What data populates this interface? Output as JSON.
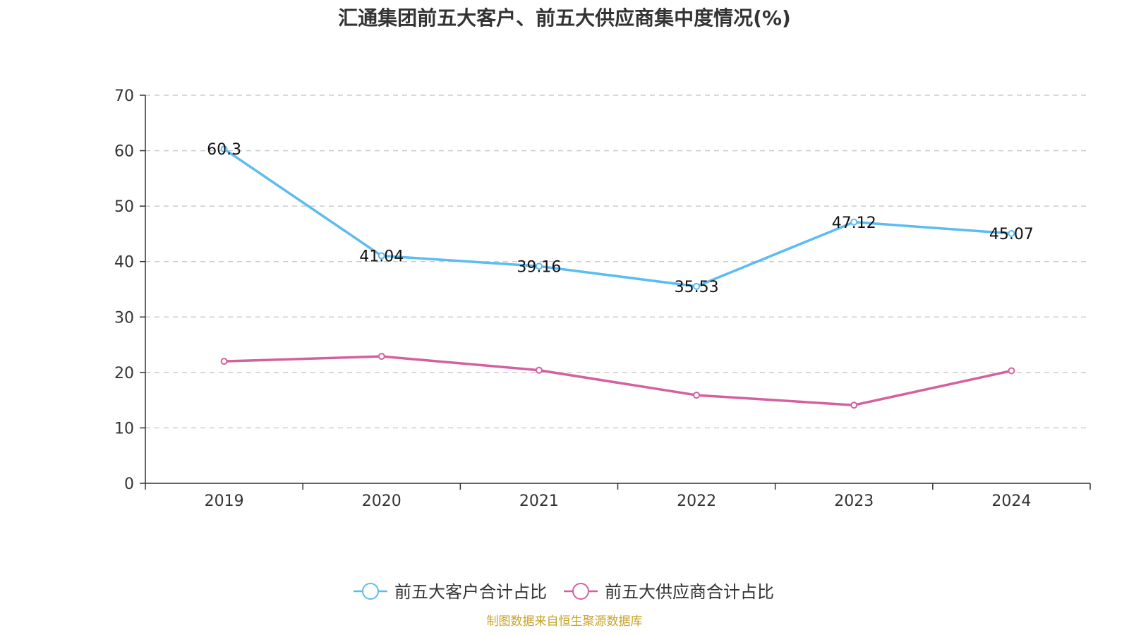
{
  "chart_data": {
    "type": "line",
    "title": "汇通集团前五大客户、前五大供应商集中度情况(%)",
    "categories": [
      "2019",
      "2020",
      "2021",
      "2022",
      "2023",
      "2024"
    ],
    "ylim": [
      0,
      70
    ],
    "yticks": [
      0,
      10,
      20,
      30,
      40,
      50,
      60,
      70
    ],
    "grid": true,
    "legend_position": "bottom",
    "series": [
      {
        "name": "前五大客户合计占比",
        "color": "#5bbcf0",
        "values": [
          60.3,
          41.04,
          39.16,
          35.53,
          47.12,
          45.07
        ],
        "labels": [
          "60.3",
          "41.04",
          "39.16",
          "35.53",
          "47.12",
          "45.07"
        ],
        "show_labels": true
      },
      {
        "name": "前五大供应商合计占比",
        "color": "#d4609f",
        "values": [
          22.0,
          22.9,
          20.4,
          15.9,
          14.1,
          20.3
        ],
        "show_labels": false
      }
    ]
  },
  "source": "制图数据来自恒生聚源数据库"
}
